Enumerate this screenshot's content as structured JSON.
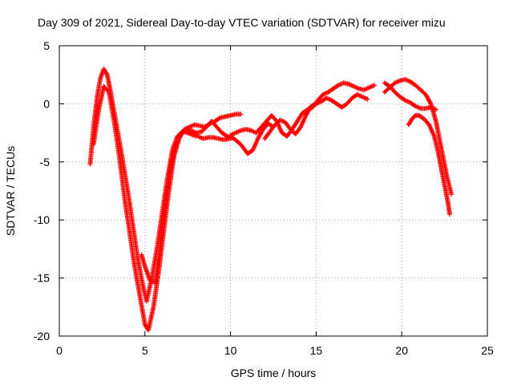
{
  "chart_data": {
    "type": "scatter",
    "title": "Day 309 of 2021, Sidereal Day-to-day VTEC variation (SDTVAR) for receiver mizu",
    "xlabel": "GPS time / hours",
    "ylabel": "SDTVAR / TECUs",
    "xlim": [
      0,
      25
    ],
    "ylim": [
      -20,
      5
    ],
    "xticks": [
      "0",
      "5",
      "10",
      "15",
      "20",
      "25"
    ],
    "yticks": [
      "5",
      "0",
      "-5",
      "-10",
      "-15",
      "-20"
    ],
    "grid": true,
    "marker": "+",
    "series": [
      {
        "name": "SDTVAR",
        "color": "#ff0000",
        "tracks": [
          {
            "x": [
              1.8,
              2.0,
              2.2,
              2.4,
              2.6,
              2.8,
              3.0,
              3.3,
              3.6,
              4.0,
              4.3,
              4.6,
              4.9,
              5.1,
              5.4,
              5.7,
              6.0,
              6.3,
              6.6,
              6.9,
              7.2,
              7.5,
              7.8,
              8.1,
              8.4,
              8.7,
              9.0,
              9.3,
              9.6,
              10.0
            ],
            "y": [
              -5.2,
              -2.0,
              0.5,
              2.2,
              3.0,
              2.5,
              1.0,
              -1.5,
              -4.0,
              -7.5,
              -10.5,
              -13.5,
              -15.8,
              -17.0,
              -15.0,
              -12.5,
              -9.5,
              -6.5,
              -4.0,
              -2.8,
              -2.4,
              -2.5,
              -2.7,
              -2.8,
              -3.0,
              -2.9,
              -2.9,
              -3.0,
              -3.1,
              -3.0
            ]
          },
          {
            "x": [
              2.0,
              2.3,
              2.6,
              2.9,
              3.2,
              3.5,
              3.8,
              4.1,
              4.4,
              4.7,
              5.0,
              5.2,
              5.5,
              5.8,
              6.1,
              6.4,
              6.7,
              7.0,
              7.3,
              7.6,
              7.9,
              8.2,
              8.5,
              8.8,
              9.1,
              9.4,
              9.7,
              10.0,
              10.3,
              10.6
            ],
            "y": [
              -3.5,
              -0.5,
              1.5,
              1.0,
              -1.5,
              -4.5,
              -8.0,
              -11.0,
              -14.0,
              -16.5,
              -19.0,
              -19.5,
              -17.5,
              -14.5,
              -11.0,
              -7.5,
              -4.5,
              -3.0,
              -2.2,
              -2.0,
              -1.8,
              -1.9,
              -2.0,
              -1.7,
              -1.5,
              -1.2,
              -1.1,
              -1.0,
              -0.9,
              -0.9
            ]
          },
          {
            "x": [
              4.8,
              5.0,
              5.3,
              5.6,
              5.9,
              6.2,
              6.5,
              6.8,
              7.1,
              7.4,
              7.7,
              8.0,
              8.3,
              8.6,
              8.9,
              9.2,
              9.5,
              9.8,
              10.2,
              10.6,
              11.0,
              11.3,
              11.6,
              11.9,
              12.2,
              12.5
            ],
            "y": [
              -13.0,
              -14.0,
              -15.2,
              -15.4,
              -12.0,
              -8.5,
              -5.5,
              -3.5,
              -2.5,
              -2.2,
              -2.3,
              -2.5,
              -2.4,
              -2.0,
              -1.5,
              -2.0,
              -2.5,
              -2.8,
              -3.0,
              -3.5,
              -4.3,
              -4.0,
              -3.0,
              -2.2,
              -1.7,
              -2.0
            ]
          },
          {
            "x": [
              10.0,
              10.3,
              10.6,
              10.9,
              11.2,
              11.5,
              11.8,
              12.1,
              12.4,
              12.7,
              13.0,
              13.3,
              13.6,
              13.9,
              14.2,
              14.5,
              14.8,
              15.1,
              15.4,
              15.7,
              16.0,
              16.3,
              16.6,
              16.9,
              17.2,
              17.5,
              17.8,
              18.1,
              18.4
            ],
            "y": [
              -2.7,
              -2.5,
              -2.3,
              -2.2,
              -2.3,
              -2.5,
              -2.0,
              -1.5,
              -1.0,
              -1.5,
              -2.5,
              -2.8,
              -2.2,
              -1.5,
              -0.8,
              -0.5,
              -0.3,
              0.3,
              0.8,
              1.0,
              1.3,
              1.6,
              1.8,
              1.7,
              1.5,
              1.3,
              1.2,
              1.4,
              1.6
            ]
          },
          {
            "x": [
              12.0,
              12.3,
              12.6,
              12.9,
              13.2,
              13.5,
              13.8,
              14.1,
              14.4,
              14.7,
              15.0,
              15.3,
              15.6,
              15.9,
              16.2,
              16.5,
              16.8,
              17.1,
              17.4,
              17.7,
              18.0
            ],
            "y": [
              -3.0,
              -2.4,
              -1.8,
              -1.4,
              -1.6,
              -2.2,
              -2.6,
              -2.0,
              -1.0,
              -0.2,
              0.0,
              0.2,
              0.5,
              0.3,
              0.0,
              -0.3,
              0.0,
              0.5,
              0.8,
              0.6,
              0.4
            ]
          },
          {
            "x": [
              19.0,
              19.3,
              19.6,
              19.9,
              20.2,
              20.5,
              20.8,
              21.1,
              21.4,
              21.7,
              22.0,
              22.2,
              22.4,
              22.6,
              22.8,
              22.9
            ],
            "y": [
              1.0,
              1.4,
              1.8,
              2.0,
              2.1,
              1.9,
              1.6,
              1.2,
              0.8,
              0.0,
              -1.5,
              -3.0,
              -4.5,
              -6.0,
              -7.2,
              -7.8
            ]
          },
          {
            "x": [
              19.0,
              19.3,
              19.6,
              19.9,
              20.2,
              20.5,
              20.8,
              21.1,
              21.4,
              21.7,
              22.0
            ],
            "y": [
              1.8,
              1.5,
              1.0,
              0.6,
              0.3,
              0.1,
              -0.2,
              -0.4,
              -0.4,
              -0.3,
              -0.5
            ]
          },
          {
            "x": [
              20.4,
              20.6,
              20.8,
              21.0,
              21.3,
              21.6,
              21.9,
              22.1,
              22.3,
              22.5,
              22.7,
              22.8
            ],
            "y": [
              -1.8,
              -1.3,
              -1.0,
              -1.0,
              -1.3,
              -1.8,
              -2.8,
              -4.0,
              -5.5,
              -7.0,
              -8.5,
              -9.5
            ]
          }
        ]
      }
    ]
  }
}
